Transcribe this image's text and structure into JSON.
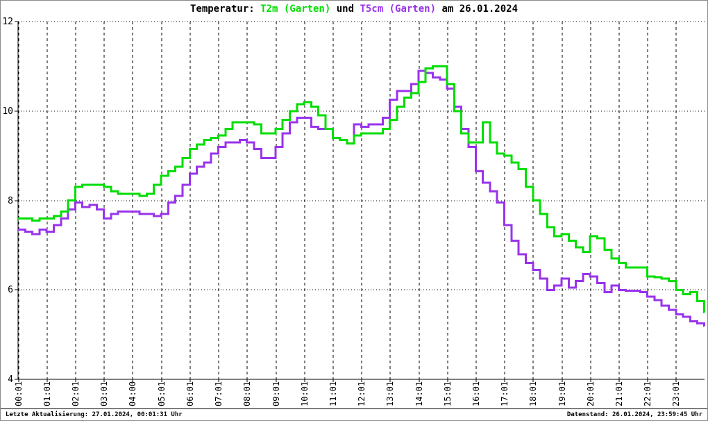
{
  "window": {
    "background": "#ffffff",
    "border_color": "#8a8a8a"
  },
  "title": {
    "prefix": "Temperatur: ",
    "series1_label": "T2m (Garten)",
    "connector": " und ",
    "series2_label": "T5cm (Garten)",
    "suffix": " am 26.01.2024"
  },
  "footer": {
    "left": "Letzte Aktualisierung: 27.01.2024, 00:01:31 Uhr",
    "right": "Datenstand: 26.01.2024, 23:59:45 Uhr"
  },
  "colors": {
    "t2m": "#00dd00",
    "t5cm": "#9933eb",
    "axis": "#000000",
    "grid": "#000000",
    "text": "#000000"
  },
  "chart_data": {
    "type": "line",
    "title": "Temperatur: T2m (Garten) und T5cm (Garten) am 26.01.2024",
    "interpolation": "step",
    "grid": true,
    "legend_position": "in-title",
    "x_axis": {
      "kind": "time",
      "range_hours": [
        0,
        24
      ],
      "tick_labels": [
        "00:01",
        "01:01",
        "02:01",
        "03:01",
        "04:00",
        "05:01",
        "06:01",
        "07:01",
        "08:01",
        "09:01",
        "10:01",
        "11:01",
        "12:01",
        "13:01",
        "14:01",
        "15:01",
        "16:01",
        "17:01",
        "18:01",
        "19:01",
        "20:01",
        "21:01",
        "22:01",
        "23:01"
      ]
    },
    "y_axis": {
      "range": [
        4,
        12
      ],
      "ticks": [
        12,
        10,
        8,
        6,
        4
      ]
    },
    "series": [
      {
        "name": "T5cm (Garten)",
        "color": "#9933eb",
        "points": [
          [
            "00:00",
            7.35
          ],
          [
            "00:15",
            7.3
          ],
          [
            "00:30",
            7.25
          ],
          [
            "00:45",
            7.35
          ],
          [
            "01:00",
            7.3
          ],
          [
            "01:15",
            7.45
          ],
          [
            "01:30",
            7.6
          ],
          [
            "01:45",
            7.8
          ],
          [
            "02:00",
            7.95
          ],
          [
            "02:15",
            7.85
          ],
          [
            "02:30",
            7.9
          ],
          [
            "02:45",
            7.8
          ],
          [
            "03:00",
            7.6
          ],
          [
            "03:15",
            7.7
          ],
          [
            "03:30",
            7.75
          ],
          [
            "03:45",
            7.75
          ],
          [
            "04:00",
            7.75
          ],
          [
            "04:15",
            7.7
          ],
          [
            "04:30",
            7.7
          ],
          [
            "04:45",
            7.65
          ],
          [
            "05:00",
            7.7
          ],
          [
            "05:15",
            7.95
          ],
          [
            "05:30",
            8.1
          ],
          [
            "05:45",
            8.35
          ],
          [
            "06:00",
            8.6
          ],
          [
            "06:15",
            8.75
          ],
          [
            "06:30",
            8.85
          ],
          [
            "06:45",
            9.05
          ],
          [
            "07:00",
            9.2
          ],
          [
            "07:15",
            9.3
          ],
          [
            "07:30",
            9.3
          ],
          [
            "07:45",
            9.35
          ],
          [
            "08:00",
            9.3
          ],
          [
            "08:15",
            9.15
          ],
          [
            "08:30",
            8.95
          ],
          [
            "08:45",
            8.95
          ],
          [
            "09:00",
            9.2
          ],
          [
            "09:15",
            9.5
          ],
          [
            "09:30",
            9.75
          ],
          [
            "09:45",
            9.85
          ],
          [
            "10:00",
            9.85
          ],
          [
            "10:15",
            9.65
          ],
          [
            "10:30",
            9.6
          ],
          [
            "10:45",
            9.6
          ],
          [
            "11:00",
            9.4
          ],
          [
            "11:15",
            9.35
          ],
          [
            "11:30",
            9.27
          ],
          [
            "11:45",
            9.7
          ],
          [
            "12:00",
            9.65
          ],
          [
            "12:15",
            9.7
          ],
          [
            "12:30",
            9.7
          ],
          [
            "12:45",
            9.85
          ],
          [
            "13:00",
            10.25
          ],
          [
            "13:15",
            10.45
          ],
          [
            "13:30",
            10.45
          ],
          [
            "13:45",
            10.6
          ],
          [
            "14:00",
            10.9
          ],
          [
            "14:15",
            10.85
          ],
          [
            "14:30",
            10.75
          ],
          [
            "14:45",
            10.7
          ],
          [
            "15:00",
            10.5
          ],
          [
            "15:15",
            10.1
          ],
          [
            "15:30",
            9.6
          ],
          [
            "15:45",
            9.2
          ],
          [
            "16:00",
            8.65
          ],
          [
            "16:15",
            8.4
          ],
          [
            "16:30",
            8.2
          ],
          [
            "16:45",
            7.95
          ],
          [
            "17:00",
            7.45
          ],
          [
            "17:15",
            7.1
          ],
          [
            "17:30",
            6.8
          ],
          [
            "17:45",
            6.6
          ],
          [
            "18:00",
            6.45
          ],
          [
            "18:15",
            6.25
          ],
          [
            "18:30",
            6.0
          ],
          [
            "18:45",
            6.1
          ],
          [
            "19:00",
            6.25
          ],
          [
            "19:15",
            6.05
          ],
          [
            "19:30",
            6.2
          ],
          [
            "19:45",
            6.35
          ],
          [
            "20:00",
            6.3
          ],
          [
            "20:15",
            6.15
          ],
          [
            "20:30",
            5.95
          ],
          [
            "20:45",
            6.1
          ],
          [
            "21:00",
            6.0
          ],
          [
            "21:15",
            5.98
          ],
          [
            "21:30",
            5.98
          ],
          [
            "21:45",
            5.95
          ],
          [
            "22:00",
            5.85
          ],
          [
            "22:15",
            5.77
          ],
          [
            "22:30",
            5.65
          ],
          [
            "22:45",
            5.55
          ],
          [
            "23:00",
            5.45
          ],
          [
            "23:15",
            5.4
          ],
          [
            "23:30",
            5.3
          ],
          [
            "23:45",
            5.25
          ],
          [
            "23:59",
            5.2
          ]
        ]
      },
      {
        "name": "T2m (Garten)",
        "color": "#00dd00",
        "points": [
          [
            "00:00",
            7.6
          ],
          [
            "00:15",
            7.6
          ],
          [
            "00:30",
            7.55
          ],
          [
            "00:45",
            7.6
          ],
          [
            "01:00",
            7.6
          ],
          [
            "01:15",
            7.65
          ],
          [
            "01:30",
            7.75
          ],
          [
            "01:45",
            8.0
          ],
          [
            "02:00",
            8.3
          ],
          [
            "02:15",
            8.35
          ],
          [
            "02:30",
            8.35
          ],
          [
            "02:45",
            8.35
          ],
          [
            "03:00",
            8.3
          ],
          [
            "03:15",
            8.2
          ],
          [
            "03:30",
            8.15
          ],
          [
            "03:45",
            8.15
          ],
          [
            "04:00",
            8.15
          ],
          [
            "04:15",
            8.1
          ],
          [
            "04:30",
            8.15
          ],
          [
            "04:45",
            8.35
          ],
          [
            "05:00",
            8.55
          ],
          [
            "05:15",
            8.65
          ],
          [
            "05:30",
            8.75
          ],
          [
            "05:45",
            8.95
          ],
          [
            "06:00",
            9.15
          ],
          [
            "06:15",
            9.25
          ],
          [
            "06:30",
            9.35
          ],
          [
            "06:45",
            9.4
          ],
          [
            "07:00",
            9.45
          ],
          [
            "07:15",
            9.6
          ],
          [
            "07:30",
            9.75
          ],
          [
            "07:45",
            9.75
          ],
          [
            "08:00",
            9.75
          ],
          [
            "08:15",
            9.7
          ],
          [
            "08:30",
            9.5
          ],
          [
            "08:45",
            9.5
          ],
          [
            "09:00",
            9.6
          ],
          [
            "09:15",
            9.8
          ],
          [
            "09:30",
            10.0
          ],
          [
            "09:45",
            10.15
          ],
          [
            "10:00",
            10.2
          ],
          [
            "10:15",
            10.1
          ],
          [
            "10:30",
            9.9
          ],
          [
            "10:45",
            9.6
          ],
          [
            "11:00",
            9.4
          ],
          [
            "11:15",
            9.35
          ],
          [
            "11:30",
            9.27
          ],
          [
            "11:45",
            9.45
          ],
          [
            "12:00",
            9.5
          ],
          [
            "12:15",
            9.5
          ],
          [
            "12:30",
            9.5
          ],
          [
            "12:45",
            9.6
          ],
          [
            "13:00",
            9.8
          ],
          [
            "13:15",
            10.1
          ],
          [
            "13:30",
            10.3
          ],
          [
            "13:45",
            10.4
          ],
          [
            "14:00",
            10.65
          ],
          [
            "14:15",
            10.95
          ],
          [
            "14:30",
            11.0
          ],
          [
            "14:45",
            11.0
          ],
          [
            "15:00",
            10.6
          ],
          [
            "15:15",
            10.0
          ],
          [
            "15:30",
            9.5
          ],
          [
            "15:45",
            9.3
          ],
          [
            "16:00",
            9.3
          ],
          [
            "16:15",
            9.75
          ],
          [
            "16:30",
            9.3
          ],
          [
            "16:45",
            9.05
          ],
          [
            "17:00",
            9.0
          ],
          [
            "17:15",
            8.85
          ],
          [
            "17:30",
            8.7
          ],
          [
            "17:45",
            8.3
          ],
          [
            "18:00",
            8.0
          ],
          [
            "18:15",
            7.7
          ],
          [
            "18:30",
            7.4
          ],
          [
            "18:45",
            7.2
          ],
          [
            "19:00",
            7.25
          ],
          [
            "19:15",
            7.1
          ],
          [
            "19:30",
            6.95
          ],
          [
            "19:45",
            6.85
          ],
          [
            "20:00",
            7.2
          ],
          [
            "20:15",
            7.15
          ],
          [
            "20:30",
            6.9
          ],
          [
            "20:45",
            6.7
          ],
          [
            "21:00",
            6.6
          ],
          [
            "21:15",
            6.5
          ],
          [
            "21:30",
            6.5
          ],
          [
            "21:45",
            6.5
          ],
          [
            "22:00",
            6.3
          ],
          [
            "22:15",
            6.28
          ],
          [
            "22:30",
            6.25
          ],
          [
            "22:45",
            6.2
          ],
          [
            "23:00",
            6.0
          ],
          [
            "23:15",
            5.9
          ],
          [
            "23:30",
            5.95
          ],
          [
            "23:45",
            5.75
          ],
          [
            "23:59",
            5.5
          ]
        ]
      }
    ]
  }
}
